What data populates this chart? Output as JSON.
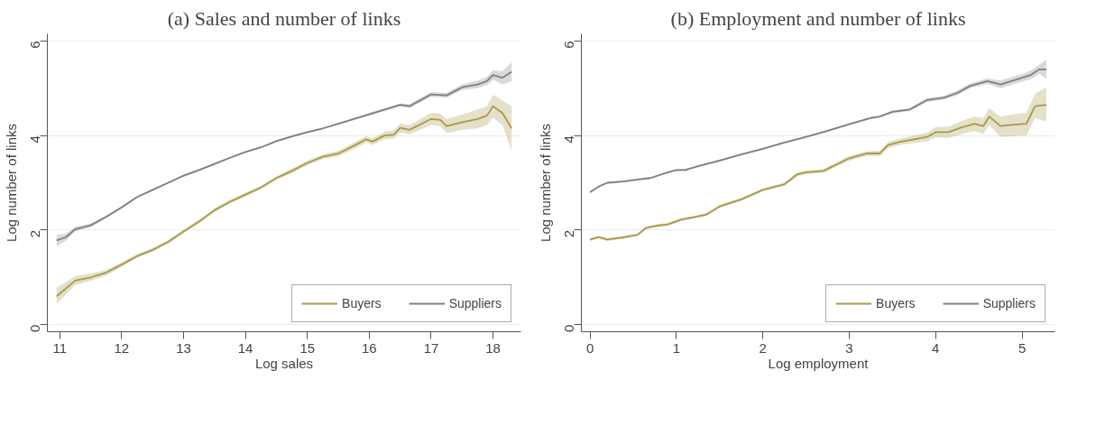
{
  "chart_data": [
    {
      "type": "line",
      "title": "(a) Sales and number of links",
      "xlabel": "Log sales",
      "ylabel": "Log number of links",
      "xlim": [
        10.8,
        18.45
      ],
      "xticks": [
        11,
        12,
        13,
        14,
        15,
        16,
        17,
        18
      ],
      "ylim": [
        -0.15,
        6.15
      ],
      "yticks": [
        0,
        2,
        4,
        6
      ],
      "grid": "y",
      "legend": "bottom right",
      "marker": "none",
      "line_style": "solid",
      "series": [
        {
          "name": "Buyers",
          "color": "#a8994a",
          "x": [
            10.95,
            11.25,
            11.5,
            11.75,
            12,
            12.25,
            12.5,
            12.75,
            13,
            13.25,
            13.5,
            13.75,
            14,
            14.25,
            14.5,
            14.75,
            15,
            15.25,
            15.5,
            15.75,
            15.95,
            16.05,
            16.25,
            16.4,
            16.5,
            16.65,
            17,
            17.15,
            17.25,
            17.5,
            17.75,
            17.9,
            18.0,
            18.15,
            18.3
          ],
          "values": [
            0.6,
            0.93,
            1.0,
            1.1,
            1.27,
            1.45,
            1.58,
            1.75,
            1.97,
            2.18,
            2.42,
            2.6,
            2.75,
            2.9,
            3.1,
            3.25,
            3.42,
            3.55,
            3.62,
            3.78,
            3.92,
            3.87,
            4.0,
            4.02,
            4.16,
            4.12,
            4.35,
            4.33,
            4.2,
            4.28,
            4.35,
            4.42,
            4.62,
            4.48,
            4.15
          ],
          "lower": [
            0.43,
            0.84,
            0.93,
            1.04,
            1.22,
            1.41,
            1.54,
            1.71,
            1.93,
            2.14,
            2.38,
            2.56,
            2.71,
            2.86,
            3.06,
            3.2,
            3.37,
            3.5,
            3.56,
            3.71,
            3.85,
            3.8,
            3.92,
            3.93,
            4.07,
            4.02,
            4.22,
            4.2,
            4.05,
            4.12,
            4.15,
            4.22,
            4.38,
            4.22,
            3.67
          ],
          "upper": [
            0.78,
            1.03,
            1.08,
            1.16,
            1.32,
            1.49,
            1.62,
            1.79,
            2.01,
            2.22,
            2.46,
            2.64,
            2.79,
            2.94,
            3.14,
            3.3,
            3.47,
            3.6,
            3.68,
            3.85,
            3.99,
            3.94,
            4.08,
            4.11,
            4.25,
            4.22,
            4.48,
            4.46,
            4.35,
            4.44,
            4.55,
            4.62,
            4.86,
            4.74,
            4.62
          ]
        },
        {
          "name": "Suppliers",
          "color": "#808080",
          "x": [
            10.95,
            11.1,
            11.25,
            11.5,
            11.75,
            12,
            12.25,
            12.5,
            12.75,
            13,
            13.25,
            13.5,
            13.75,
            14,
            14.25,
            14.5,
            14.75,
            15,
            15.25,
            15.5,
            15.75,
            16,
            16.25,
            16.5,
            16.65,
            17,
            17.25,
            17.5,
            17.75,
            17.9,
            18.0,
            18.15,
            18.3
          ],
          "values": [
            1.78,
            1.85,
            2.02,
            2.1,
            2.28,
            2.48,
            2.7,
            2.85,
            3.0,
            3.15,
            3.27,
            3.4,
            3.53,
            3.65,
            3.75,
            3.88,
            3.98,
            4.07,
            4.15,
            4.25,
            4.35,
            4.45,
            4.55,
            4.65,
            4.62,
            4.87,
            4.85,
            5.02,
            5.08,
            5.15,
            5.28,
            5.22,
            5.35
          ],
          "lower": [
            1.66,
            1.78,
            1.97,
            2.06,
            2.25,
            2.45,
            2.68,
            2.83,
            2.98,
            3.13,
            3.25,
            3.38,
            3.51,
            3.63,
            3.73,
            3.86,
            3.96,
            4.05,
            4.13,
            4.23,
            4.33,
            4.42,
            4.52,
            4.62,
            4.58,
            4.82,
            4.8,
            4.96,
            5.0,
            5.06,
            5.18,
            5.08,
            5.15
          ],
          "upper": [
            1.9,
            1.92,
            2.07,
            2.14,
            2.31,
            2.51,
            2.72,
            2.87,
            3.02,
            3.17,
            3.29,
            3.42,
            3.55,
            3.67,
            3.77,
            3.9,
            4.0,
            4.09,
            4.17,
            4.27,
            4.37,
            4.48,
            4.58,
            4.68,
            4.66,
            4.92,
            4.9,
            5.08,
            5.16,
            5.24,
            5.38,
            5.36,
            5.55
          ]
        }
      ]
    },
    {
      "type": "line",
      "title": "(b) Employment and number of links",
      "xlabel": "Log employment",
      "ylabel": "Log number of links",
      "xlim": [
        -0.1,
        5.38
      ],
      "xticks": [
        0,
        1,
        2,
        3,
        4,
        5
      ],
      "ylim": [
        -0.15,
        6.15
      ],
      "yticks": [
        0,
        2,
        4,
        6
      ],
      "grid": "y",
      "legend": "bottom right",
      "marker": "none",
      "line_style": "solid",
      "series": [
        {
          "name": "Buyers",
          "color": "#a8994a",
          "x": [
            0,
            0.1,
            0.2,
            0.4,
            0.55,
            0.65,
            0.8,
            0.9,
            1.05,
            1.2,
            1.35,
            1.5,
            1.75,
            2,
            2.25,
            2.4,
            2.5,
            2.7,
            3,
            3.2,
            3.35,
            3.45,
            3.6,
            3.9,
            4.0,
            4.15,
            4.3,
            4.45,
            4.55,
            4.62,
            4.75,
            4.9,
            5.05,
            5.15,
            5.28
          ],
          "values": [
            1.8,
            1.85,
            1.8,
            1.85,
            1.9,
            2.05,
            2.1,
            2.12,
            2.22,
            2.27,
            2.33,
            2.5,
            2.65,
            2.85,
            2.97,
            3.18,
            3.22,
            3.25,
            3.52,
            3.62,
            3.62,
            3.8,
            3.87,
            3.97,
            4.07,
            4.07,
            4.17,
            4.25,
            4.2,
            4.4,
            4.2,
            4.23,
            4.25,
            4.62,
            4.65
          ],
          "lower": [
            1.77,
            1.82,
            1.77,
            1.82,
            1.87,
            2.02,
            2.07,
            2.09,
            2.19,
            2.24,
            2.3,
            2.47,
            2.62,
            2.82,
            2.94,
            3.14,
            3.18,
            3.21,
            3.47,
            3.57,
            3.56,
            3.73,
            3.8,
            3.88,
            3.96,
            3.95,
            4.03,
            4.1,
            4.03,
            4.22,
            3.97,
            3.99,
            4.0,
            4.37,
            4.3
          ],
          "upper": [
            1.83,
            1.88,
            1.83,
            1.88,
            1.93,
            2.08,
            2.13,
            2.15,
            2.25,
            2.3,
            2.36,
            2.53,
            2.68,
            2.88,
            3.0,
            3.22,
            3.26,
            3.29,
            3.57,
            3.67,
            3.68,
            3.87,
            3.94,
            4.06,
            4.18,
            4.19,
            4.31,
            4.4,
            4.37,
            4.58,
            4.4,
            4.45,
            4.48,
            4.88,
            5.02
          ]
        },
        {
          "name": "Suppliers",
          "color": "#808080",
          "x": [
            0,
            0.1,
            0.2,
            0.4,
            0.55,
            0.7,
            0.9,
            1.0,
            1.1,
            1.25,
            1.5,
            1.75,
            2.0,
            2.25,
            2.5,
            2.75,
            3.0,
            3.25,
            3.35,
            3.5,
            3.7,
            3.9,
            4.1,
            4.25,
            4.4,
            4.6,
            4.75,
            5.0,
            5.1,
            5.2,
            5.28
          ],
          "values": [
            2.8,
            2.92,
            3.0,
            3.03,
            3.07,
            3.1,
            3.22,
            3.27,
            3.27,
            3.35,
            3.47,
            3.6,
            3.72,
            3.85,
            3.97,
            4.1,
            4.24,
            4.37,
            4.4,
            4.5,
            4.55,
            4.75,
            4.8,
            4.9,
            5.05,
            5.15,
            5.08,
            5.22,
            5.28,
            5.4,
            5.4
          ],
          "lower": [
            2.78,
            2.9,
            2.98,
            3.01,
            3.05,
            3.08,
            3.2,
            3.25,
            3.25,
            3.33,
            3.45,
            3.58,
            3.7,
            3.83,
            3.95,
            4.08,
            4.22,
            4.35,
            4.38,
            4.47,
            4.52,
            4.71,
            4.76,
            4.85,
            5.0,
            5.09,
            5.0,
            5.14,
            5.19,
            5.3,
            5.2
          ],
          "upper": [
            2.82,
            2.94,
            3.02,
            3.05,
            3.09,
            3.12,
            3.24,
            3.29,
            3.29,
            3.37,
            3.49,
            3.62,
            3.74,
            3.87,
            3.99,
            4.12,
            4.26,
            4.39,
            4.42,
            4.53,
            4.58,
            4.79,
            4.84,
            4.95,
            5.1,
            5.21,
            5.16,
            5.3,
            5.37,
            5.5,
            5.6
          ]
        }
      ]
    }
  ]
}
